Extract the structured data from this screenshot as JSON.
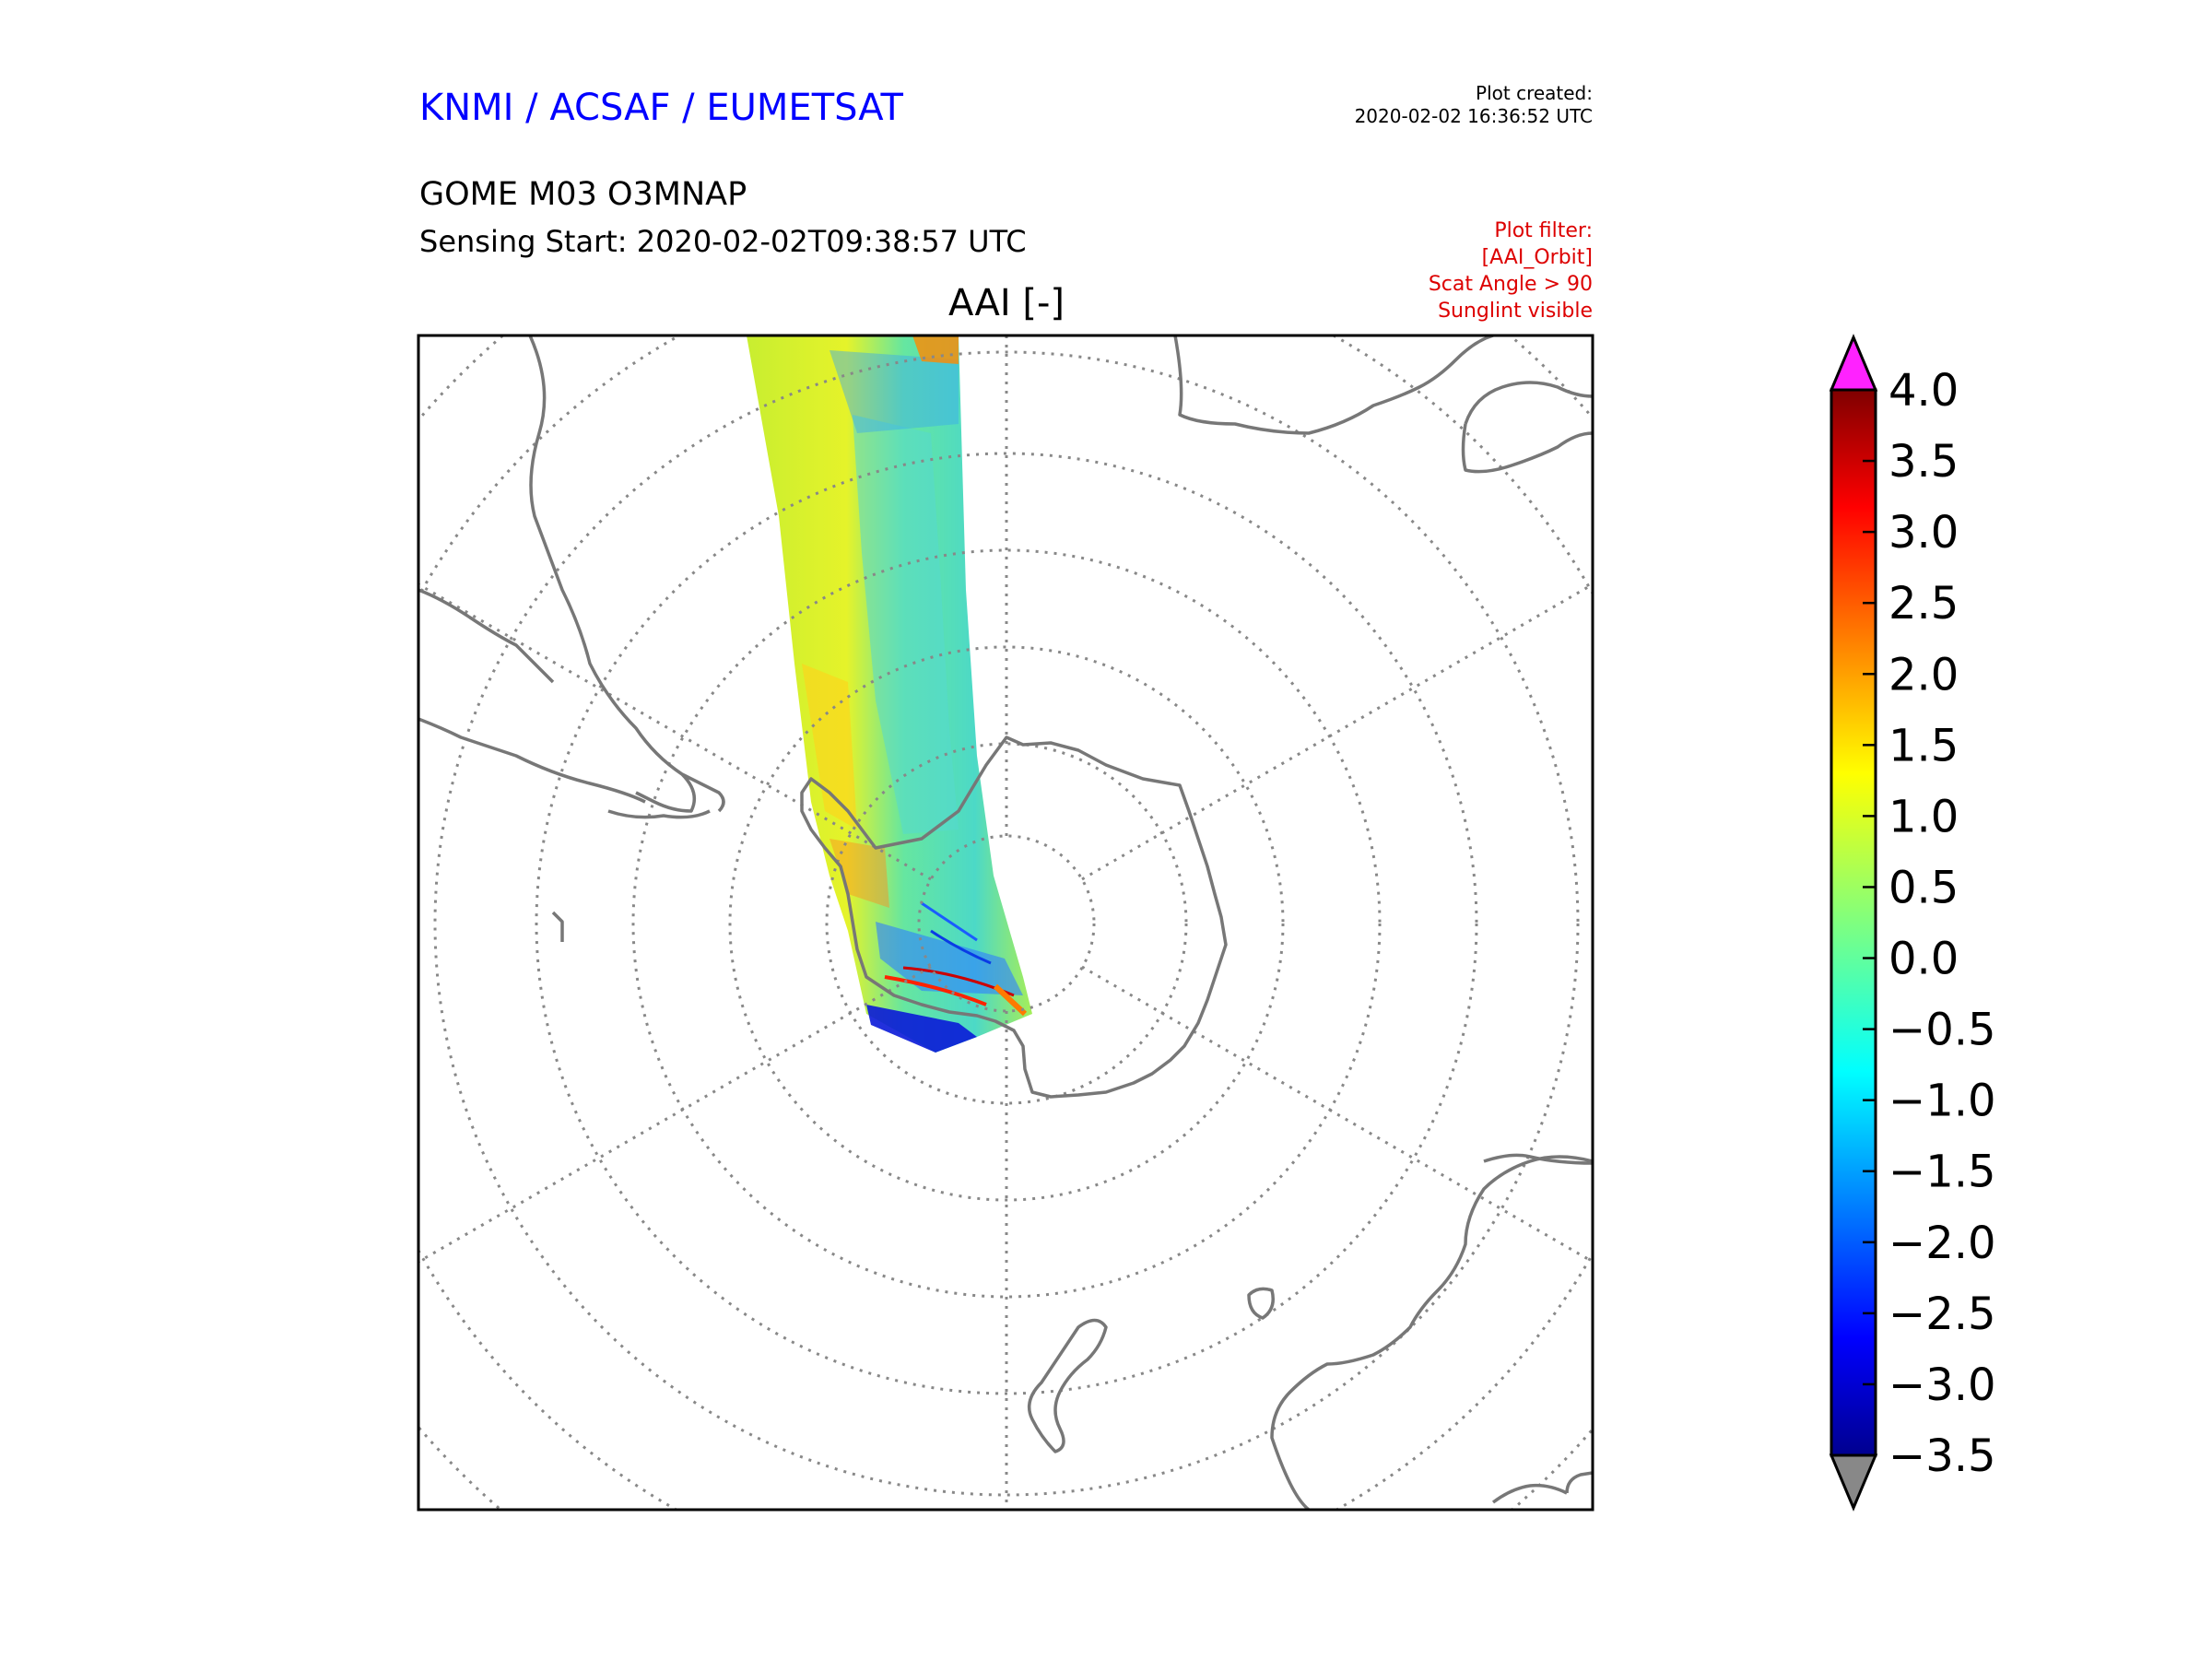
{
  "header": {
    "brand": "KNMI / ACSAF / EUMETSAT",
    "brand_color": "#0000ff",
    "product": "GOME M03 O3MNAP",
    "sensing_start": "Sensing Start: 2020-02-02T09:38:57 UTC",
    "plot_created_label": "Plot created:",
    "plot_created_time": "2020-02-02 16:36:52 UTC",
    "map_title": "AAI [-]"
  },
  "filter": {
    "color": "#dd0000",
    "lines": [
      "Plot filter:",
      "[AAI_Orbit]",
      "Scat Angle > 90",
      "Sunglint visible"
    ]
  },
  "map": {
    "projection": "south-polar-stereographic",
    "coastline_color": "#777777",
    "graticule_color": "#888888"
  },
  "colorbar": {
    "colormap": "jet",
    "min": -3.5,
    "max": 4.0,
    "over_color": "#ff22ff",
    "under_color": "#888888",
    "ticks": [
      "4.0",
      "3.5",
      "3.0",
      "2.5",
      "2.0",
      "1.5",
      "1.0",
      "0.5",
      "0.0",
      "−0.5",
      "−1.0",
      "−1.5",
      "−2.0",
      "−2.5",
      "−3.0",
      "−3.5"
    ]
  }
}
